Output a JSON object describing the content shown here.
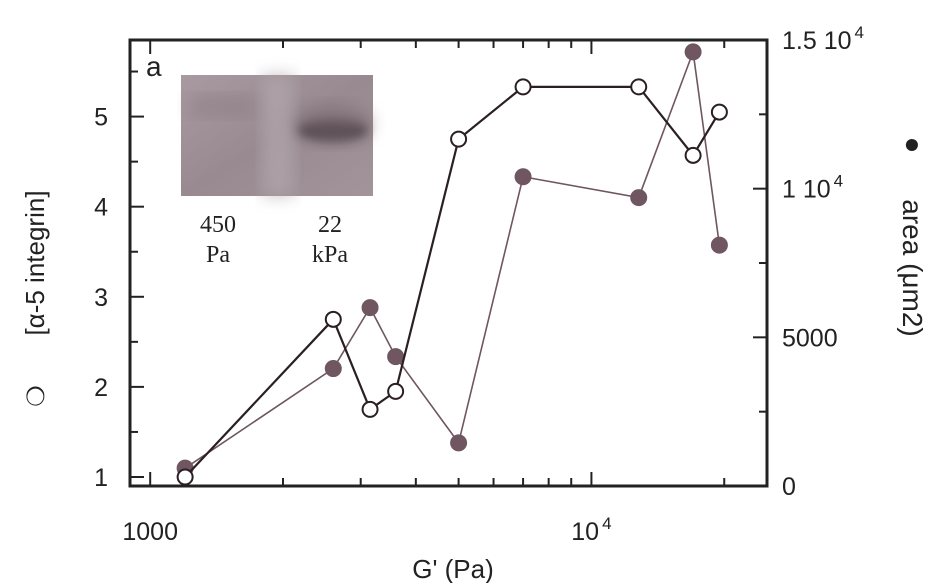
{
  "chart_data": {
    "type": "line",
    "panel_label": "a",
    "xlabel": "G' (Pa)",
    "xscale": "log",
    "xlim": [
      900,
      25000
    ],
    "x_tick_labels": [
      {
        "value": 1000,
        "base": "1000",
        "exp": ""
      },
      {
        "value": 10000,
        "base": "10",
        "exp": "4"
      }
    ],
    "x_minor_ticks": [
      2000,
      3000,
      4000,
      5000,
      6000,
      7000,
      8000,
      9000,
      20000
    ],
    "y_left": {
      "label": "[α-5 integrin]",
      "marker_symbol": "❍",
      "ylim": [
        0.9,
        5.85
      ],
      "ticks": [
        1,
        2,
        3,
        4,
        5
      ],
      "tick_labels": [
        "1",
        "2",
        "3",
        "4",
        "5"
      ],
      "minor_ticks": [
        1.5,
        2.5,
        3.5,
        4.5,
        5.5
      ]
    },
    "y_right": {
      "label": "area (μm2)",
      "marker_symbol": "●",
      "ylim": [
        0,
        15000
      ],
      "ticks": [
        0,
        5000,
        10000,
        15000
      ],
      "tick_labels": [
        {
          "base": "0",
          "exp": ""
        },
        {
          "base": "5000",
          "exp": ""
        },
        {
          "base": "1 10",
          "exp": "4"
        },
        {
          "base": "1.5 10",
          "exp": "4"
        }
      ],
      "minor_ticks": [
        2500,
        7500,
        12500
      ]
    },
    "series": [
      {
        "marker": "open-circle",
        "axis": "left",
        "color": "#2a1f23",
        "x": [
          1200,
          2600,
          3150,
          3600,
          5000,
          7000,
          12800,
          17000,
          19500
        ],
        "y": [
          1.0,
          2.75,
          1.75,
          1.95,
          4.75,
          5.33,
          5.33,
          4.57,
          5.05
        ]
      },
      {
        "marker": "filled-circle",
        "axis": "right",
        "color": "#6f5660",
        "x": [
          1200,
          2600,
          3150,
          3600,
          5000,
          7000,
          12800,
          17000,
          19500
        ],
        "y": [
          600,
          3950,
          6000,
          4350,
          1450,
          10400,
          9700,
          14600,
          8100
        ]
      }
    ],
    "inset": {
      "lanes": [
        {
          "label_line1": "450",
          "label_line2": "Pa"
        },
        {
          "label_line1": "22",
          "label_line2": "kPa"
        }
      ]
    },
    "colors": {
      "axis": "#222222",
      "open_series": "#2a1f23",
      "filled_series": "#6f5660",
      "blot_bg": "#9c8e94",
      "blot_band": "#3a3034"
    }
  }
}
